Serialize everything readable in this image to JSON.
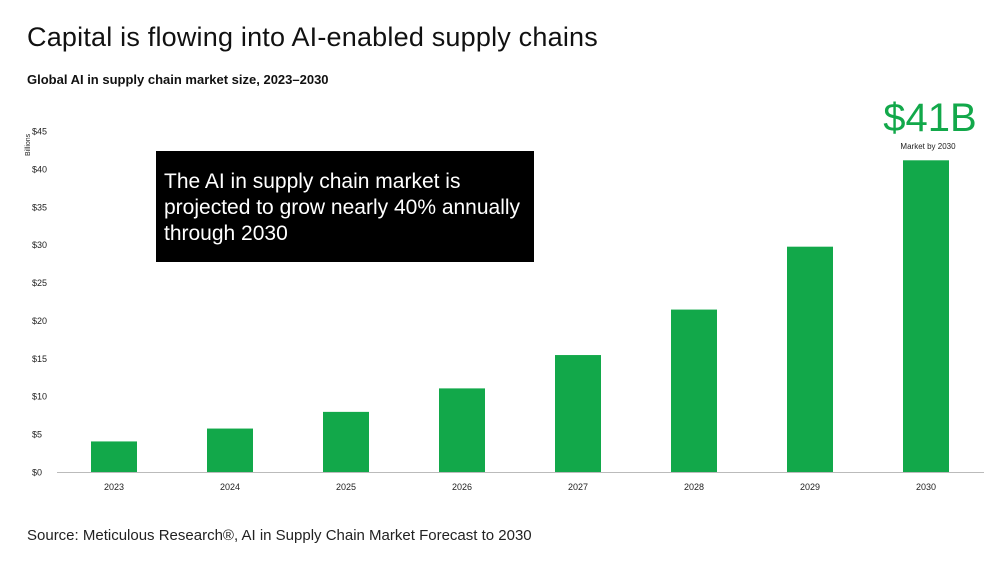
{
  "header": {
    "title": "Capital is flowing into AI-enabled supply chains",
    "subtitle": "Global AI in supply chain market size, 2023–2030"
  },
  "annotation": {
    "text": "The AI in supply chain market is projected to grow nearly 40% annually through 2030"
  },
  "callout": {
    "value": "$41B",
    "note": "Market by 2030",
    "color": "#12a84a"
  },
  "footer": {
    "source": "Source: Meticulous Research®, AI in Supply Chain Market Forecast to 2030"
  },
  "chart_data": {
    "type": "bar",
    "title": "Capital is flowing into AI-enabled supply chains",
    "subtitle": "Global AI in supply chain market size, 2023–2030",
    "xlabel": "",
    "ylabel": "Billions",
    "categories": [
      "2023",
      "2024",
      "2025",
      "2026",
      "2027",
      "2028",
      "2029",
      "2030"
    ],
    "values": [
      4.1,
      5.8,
      8.0,
      11.1,
      15.5,
      21.5,
      29.8,
      41.2
    ],
    "ylim": [
      0,
      45
    ],
    "yticks": [
      0,
      5,
      10,
      15,
      20,
      25,
      30,
      35,
      40,
      45
    ],
    "ytick_labels": [
      "$0",
      "$5",
      "$10",
      "$15",
      "$20",
      "$25",
      "$30",
      "$35",
      "$40",
      "$45"
    ],
    "grid": false,
    "bar_color": "#12a84a"
  }
}
